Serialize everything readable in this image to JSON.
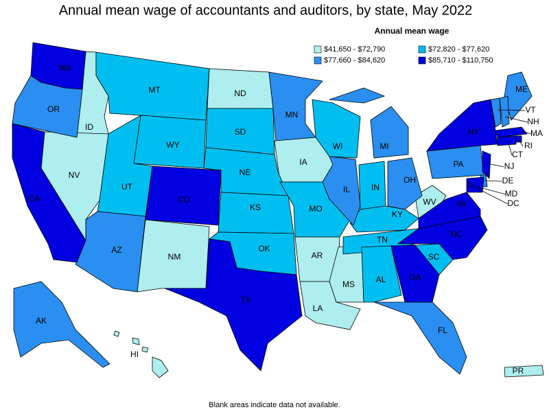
{
  "title": "Annual mean wage of accountants and auditors, by state, May 2022",
  "legend": {
    "title": "Annual mean wage",
    "items": [
      {
        "label": "$41,650 - $72,790",
        "color": "#aeeeee",
        "states": [
          "ID",
          "NV",
          "ND",
          "IA",
          "NM",
          "AR",
          "MS",
          "LA",
          "WV",
          "HI",
          "PR"
        ]
      },
      {
        "label": "$72,820 - $77,620",
        "color": "#00bff0",
        "states": [
          "MT",
          "WY",
          "SD",
          "NE",
          "UT",
          "KS",
          "OK",
          "MO",
          "WI",
          "IN",
          "KY",
          "TN",
          "AL",
          "SC"
        ]
      },
      {
        "label": "$77,660 - $84,620",
        "color": "#2a8ff0",
        "states": [
          "OR",
          "AZ",
          "MN",
          "IL",
          "MI",
          "OH",
          "PA",
          "FL",
          "AK",
          "ME",
          "VT",
          "NH",
          "DE"
        ]
      },
      {
        "label": "$85,710 - $110,750",
        "color": "#0000e0",
        "states": [
          "WA",
          "CA",
          "CO",
          "TX",
          "NY",
          "NJ",
          "MA",
          "CT",
          "RI",
          "MD",
          "DC",
          "VA",
          "NC",
          "GA"
        ]
      }
    ]
  },
  "footnote": "Blank areas indicate data not available."
}
